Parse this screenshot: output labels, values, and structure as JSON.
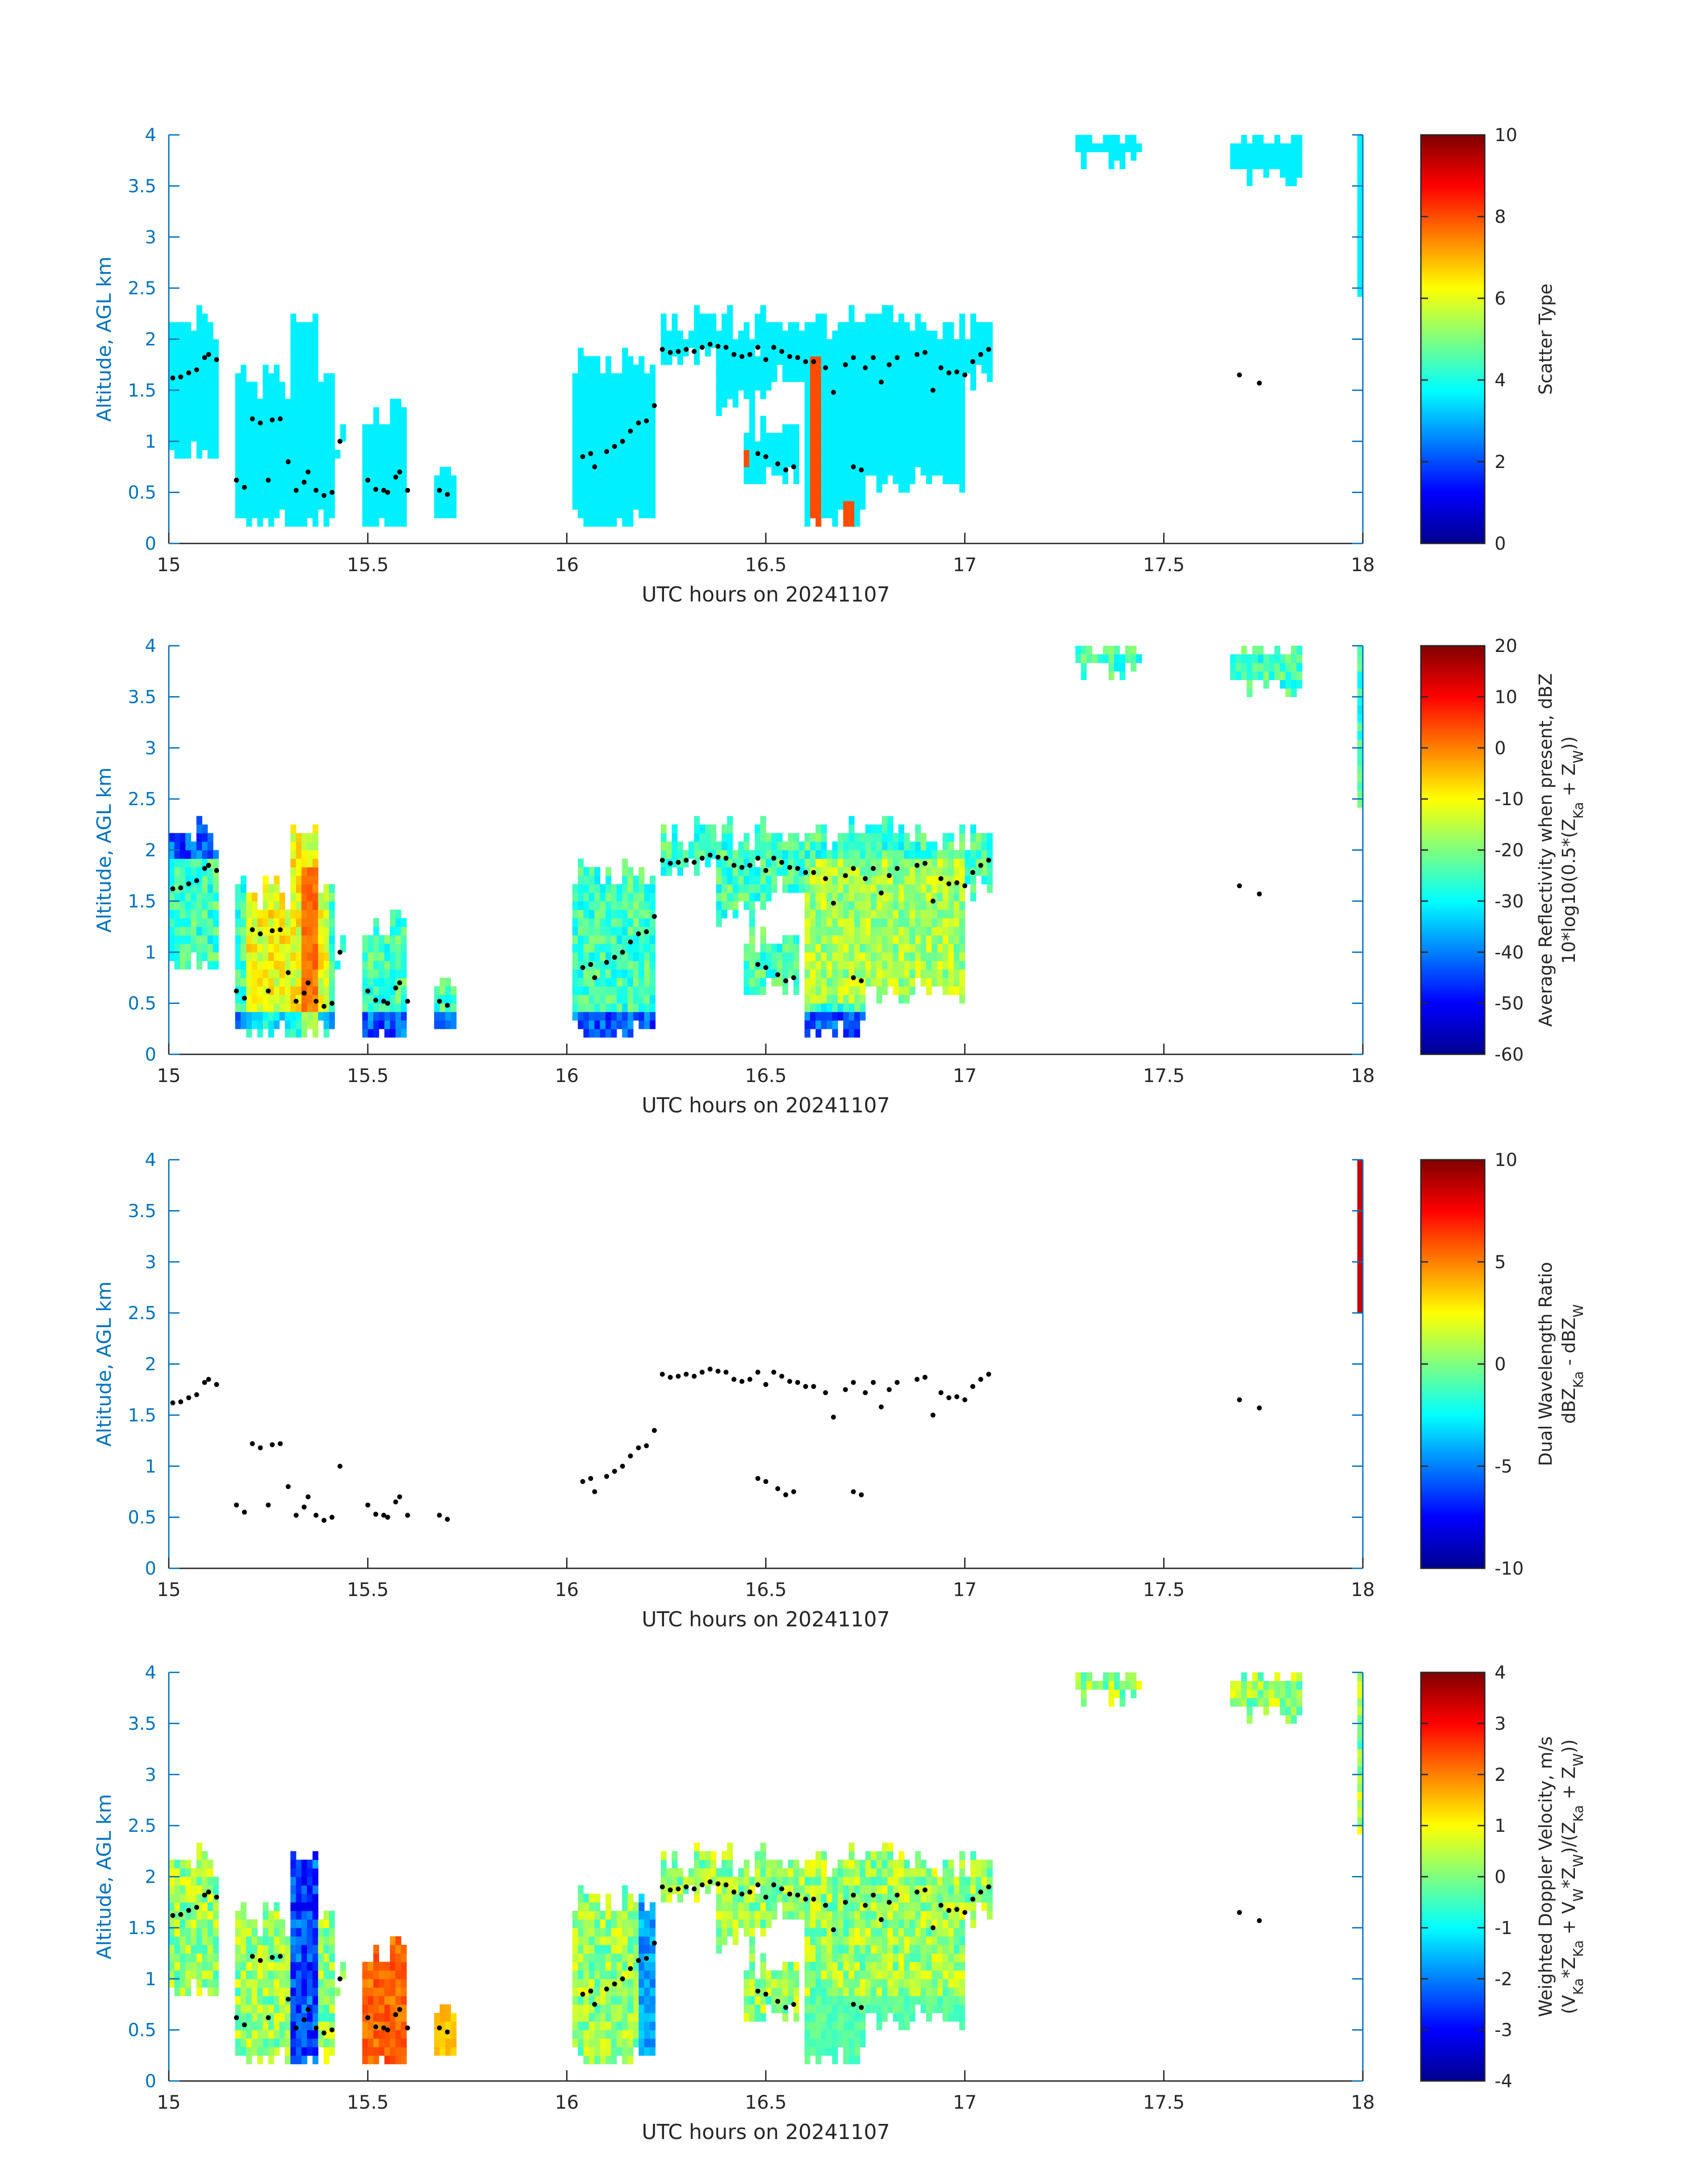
{
  "figure": {
    "xlabel": "UTC hours on 20241107",
    "ylabel": "Altitude, AGL km",
    "xticks": [
      "15",
      "15.5",
      "16",
      "16.5",
      "17",
      "17.5",
      "18"
    ],
    "yticks": [
      "0",
      "0.5",
      "1",
      "1.5",
      "2",
      "2.5",
      "3",
      "3.5",
      "4"
    ]
  },
  "chart_data": [
    {
      "type": "heatmap",
      "panel": 1,
      "xlim": [
        15,
        18
      ],
      "ylim": [
        0,
        4
      ],
      "colorbar": {
        "label_lines": [
          "Scatter Type"
        ],
        "ticks": [
          "0",
          "2",
          "4",
          "6",
          "8",
          "10"
        ],
        "range": [
          0,
          10
        ],
        "colormap": "jet"
      },
      "field_style": "category",
      "note_value_dominant": 3.6,
      "highlight_value": 8.0
    },
    {
      "type": "heatmap",
      "panel": 2,
      "xlim": [
        15,
        18
      ],
      "ylim": [
        0,
        4
      ],
      "colorbar": {
        "label_lines": [
          "Average Reflectivity when present, dBZ",
          "10*log10(0.5*(Z",
          "Ka",
          " + Z",
          "W",
          "))"
        ],
        "ticks": [
          "-60",
          "-50",
          "-40",
          "-30",
          "-20",
          "-10",
          "0",
          "10",
          "20"
        ],
        "range": [
          -60,
          20
        ],
        "colormap": "jet"
      },
      "field_style": "reflectivity"
    },
    {
      "type": "heatmap",
      "panel": 3,
      "xlim": [
        15,
        18
      ],
      "ylim": [
        0,
        4
      ],
      "colorbar": {
        "label_lines": [
          "Dual Wavelength Ratio",
          "dBZ",
          "Ka",
          " - dBZ",
          "W"
        ],
        "ticks": [
          "-10",
          "-5",
          "0",
          "5",
          "10"
        ],
        "range": [
          -10,
          10
        ],
        "colormap": "jet"
      },
      "field_style": "dwr"
    },
    {
      "type": "heatmap",
      "panel": 4,
      "xlim": [
        15,
        18
      ],
      "ylim": [
        0,
        4
      ],
      "colorbar": {
        "label_lines": [
          "Weighted Doppler Velocity, m/s",
          "(V",
          "Ka",
          "*Z",
          "Ka",
          " + V",
          "W",
          "*Z",
          "W",
          ")/(Z",
          "Ka",
          " + Z",
          "W",
          "))"
        ],
        "ticks": [
          "-4",
          "-3",
          "-2",
          "-1",
          "0",
          "1",
          "2",
          "3",
          "4"
        ],
        "range": [
          -4,
          4
        ],
        "colormap": "jet"
      },
      "field_style": "velocity"
    }
  ],
  "cloud_regions": [
    {
      "x0": 15.0,
      "x1": 15.12,
      "ytop": 2.15,
      "ybot": 0.9
    },
    {
      "x0": 15.17,
      "x1": 15.42,
      "ytop": 1.6,
      "ybot": 0.2
    },
    {
      "x0": 15.3,
      "x1": 15.38,
      "ytop": 2.1,
      "ybot": 0.2
    },
    {
      "x0": 15.42,
      "x1": 15.44,
      "ytop": 1.05,
      "ybot": 0.9
    },
    {
      "x0": 15.48,
      "x1": 15.6,
      "ytop": 1.3,
      "ybot": 0.2
    },
    {
      "x0": 15.67,
      "x1": 15.72,
      "ytop": 0.65,
      "ybot": 0.2
    },
    {
      "x0": 16.02,
      "x1": 16.22,
      "ytop": 1.8,
      "ybot": 0.2
    },
    {
      "x0": 16.24,
      "x1": 16.5,
      "ytop": 2.2,
      "ybot": 1.8
    },
    {
      "x0": 16.38,
      "x1": 16.5,
      "ytop": 2.0,
      "ybot": 1.35
    },
    {
      "x0": 16.45,
      "x1": 16.58,
      "ytop": 1.2,
      "ybot": 0.65
    },
    {
      "x0": 16.5,
      "x1": 17.07,
      "ytop": 2.15,
      "ybot": 1.6
    },
    {
      "x0": 16.6,
      "x1": 16.75,
      "ytop": 1.9,
      "ybot": 0.2
    },
    {
      "x0": 16.75,
      "x1": 17.0,
      "ytop": 2.1,
      "ybot": 0.6
    },
    {
      "x0": 17.28,
      "x1": 17.45,
      "ytop": 4.0,
      "ybot": 3.75
    },
    {
      "x0": 17.67,
      "x1": 17.85,
      "ytop": 4.0,
      "ybot": 3.6
    },
    {
      "x0": 17.98,
      "x1": 18.0,
      "ytop": 4.0,
      "ybot": 2.5
    }
  ],
  "cloud_top_points": [
    {
      "x": 15.01,
      "y": 1.62
    },
    {
      "x": 15.03,
      "y": 1.63
    },
    {
      "x": 15.05,
      "y": 1.67
    },
    {
      "x": 15.07,
      "y": 1.7
    },
    {
      "x": 15.09,
      "y": 1.82
    },
    {
      "x": 15.1,
      "y": 1.85
    },
    {
      "x": 15.12,
      "y": 1.8
    },
    {
      "x": 15.17,
      "y": 0.62
    },
    {
      "x": 15.19,
      "y": 0.55
    },
    {
      "x": 15.21,
      "y": 1.22
    },
    {
      "x": 15.23,
      "y": 1.18
    },
    {
      "x": 15.25,
      "y": 0.62
    },
    {
      "x": 15.26,
      "y": 1.21
    },
    {
      "x": 15.28,
      "y": 1.22
    },
    {
      "x": 15.3,
      "y": 0.8
    },
    {
      "x": 15.32,
      "y": 0.52
    },
    {
      "x": 15.34,
      "y": 0.6
    },
    {
      "x": 15.35,
      "y": 0.7
    },
    {
      "x": 15.37,
      "y": 0.52
    },
    {
      "x": 15.39,
      "y": 0.47
    },
    {
      "x": 15.41,
      "y": 0.5
    },
    {
      "x": 15.43,
      "y": 1.0
    },
    {
      "x": 15.5,
      "y": 0.62
    },
    {
      "x": 15.52,
      "y": 0.53
    },
    {
      "x": 15.54,
      "y": 0.52
    },
    {
      "x": 15.55,
      "y": 0.5
    },
    {
      "x": 15.57,
      "y": 0.65
    },
    {
      "x": 15.58,
      "y": 0.7
    },
    {
      "x": 15.6,
      "y": 0.52
    },
    {
      "x": 15.68,
      "y": 0.52
    },
    {
      "x": 15.7,
      "y": 0.48
    },
    {
      "x": 16.04,
      "y": 0.85
    },
    {
      "x": 16.06,
      "y": 0.88
    },
    {
      "x": 16.07,
      "y": 0.75
    },
    {
      "x": 16.1,
      "y": 0.9
    },
    {
      "x": 16.12,
      "y": 0.95
    },
    {
      "x": 16.14,
      "y": 1.0
    },
    {
      "x": 16.16,
      "y": 1.1
    },
    {
      "x": 16.18,
      "y": 1.18
    },
    {
      "x": 16.2,
      "y": 1.2
    },
    {
      "x": 16.22,
      "y": 1.35
    },
    {
      "x": 16.24,
      "y": 1.9
    },
    {
      "x": 16.26,
      "y": 1.87
    },
    {
      "x": 16.28,
      "y": 1.88
    },
    {
      "x": 16.3,
      "y": 1.9
    },
    {
      "x": 16.32,
      "y": 1.88
    },
    {
      "x": 16.34,
      "y": 1.92
    },
    {
      "x": 16.36,
      "y": 1.95
    },
    {
      "x": 16.38,
      "y": 1.93
    },
    {
      "x": 16.4,
      "y": 1.92
    },
    {
      "x": 16.42,
      "y": 1.85
    },
    {
      "x": 16.44,
      "y": 1.83
    },
    {
      "x": 16.46,
      "y": 1.85
    },
    {
      "x": 16.48,
      "y": 1.92
    },
    {
      "x": 16.5,
      "y": 1.8
    },
    {
      "x": 16.52,
      "y": 1.92
    },
    {
      "x": 16.54,
      "y": 1.88
    },
    {
      "x": 16.56,
      "y": 1.83
    },
    {
      "x": 16.58,
      "y": 1.82
    },
    {
      "x": 16.6,
      "y": 1.78
    },
    {
      "x": 16.62,
      "y": 1.78
    },
    {
      "x": 16.65,
      "y": 1.72
    },
    {
      "x": 16.67,
      "y": 1.48
    },
    {
      "x": 16.7,
      "y": 1.75
    },
    {
      "x": 16.72,
      "y": 1.82
    },
    {
      "x": 16.75,
      "y": 1.72
    },
    {
      "x": 16.77,
      "y": 1.82
    },
    {
      "x": 16.79,
      "y": 1.58
    },
    {
      "x": 16.81,
      "y": 1.75
    },
    {
      "x": 16.83,
      "y": 1.82
    },
    {
      "x": 16.88,
      "y": 1.85
    },
    {
      "x": 16.9,
      "y": 1.87
    },
    {
      "x": 16.92,
      "y": 1.5
    },
    {
      "x": 16.94,
      "y": 1.72
    },
    {
      "x": 16.96,
      "y": 1.67
    },
    {
      "x": 16.98,
      "y": 1.68
    },
    {
      "x": 17.0,
      "y": 1.65
    },
    {
      "x": 17.02,
      "y": 1.78
    },
    {
      "x": 17.04,
      "y": 1.85
    },
    {
      "x": 17.06,
      "y": 1.9
    },
    {
      "x": 16.48,
      "y": 0.88
    },
    {
      "x": 16.5,
      "y": 0.85
    },
    {
      "x": 16.53,
      "y": 0.78
    },
    {
      "x": 16.55,
      "y": 0.72
    },
    {
      "x": 16.57,
      "y": 0.75
    },
    {
      "x": 16.72,
      "y": 0.75
    },
    {
      "x": 16.74,
      "y": 0.72
    },
    {
      "x": 17.69,
      "y": 1.65
    },
    {
      "x": 17.74,
      "y": 1.57
    }
  ]
}
